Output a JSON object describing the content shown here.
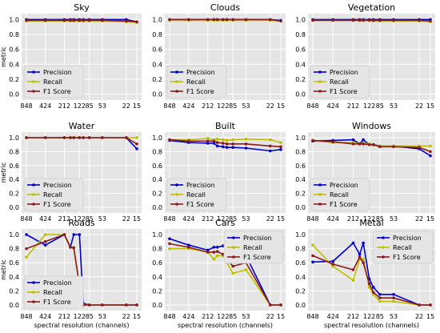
{
  "figure": {
    "common_x": {
      "tick_labels": [
        "848",
        "424",
        "212",
        "122",
        "85",
        "53",
        "22",
        "15"
      ],
      "label": "spectral resolution (channels)"
    },
    "common_y": {
      "tick_labels": [
        "0.0",
        "0.2",
        "0.4",
        "0.6",
        "0.8",
        "1.0"
      ],
      "label": "metric"
    },
    "legend": [
      "Precision",
      "Recall",
      "F1 Score"
    ],
    "colors": {
      "precision": "#0000cc",
      "recall": "#bfbf00",
      "f1": "#8b1a1a",
      "panel_bg": "#e5e5e5",
      "grid": "#ffffff"
    }
  },
  "chart_data": [
    {
      "type": "line",
      "title": "Sky",
      "ylabel": "metric",
      "xlabel": "",
      "x": [
        848,
        424,
        212,
        170,
        150,
        122,
        106,
        85,
        53,
        22,
        15
      ],
      "ylim": [
        -0.08,
        1.08
      ],
      "grid": true,
      "legend": "lower-left",
      "series": [
        {
          "name": "Precision",
          "values": [
            1.0,
            1.0,
            1.0,
            1.0,
            1.0,
            1.0,
            1.0,
            1.0,
            1.0,
            1.0,
            0.97
          ]
        },
        {
          "name": "Recall",
          "values": [
            0.98,
            0.98,
            0.98,
            0.98,
            0.98,
            0.98,
            0.98,
            0.98,
            0.98,
            0.97,
            0.96
          ]
        },
        {
          "name": "F1 Score",
          "values": [
            0.99,
            0.99,
            0.99,
            0.99,
            0.99,
            0.99,
            0.99,
            0.99,
            0.99,
            0.98,
            0.97
          ]
        }
      ]
    },
    {
      "type": "line",
      "title": "Clouds",
      "ylabel": "",
      "xlabel": "",
      "x": [
        848,
        424,
        212,
        170,
        150,
        122,
        106,
        85,
        53,
        22,
        15
      ],
      "ylim": [
        -0.08,
        1.08
      ],
      "grid": true,
      "legend": "lower-left",
      "series": [
        {
          "name": "Precision",
          "values": [
            1.0,
            1.0,
            1.0,
            1.0,
            1.0,
            1.0,
            1.0,
            1.0,
            1.0,
            1.0,
            0.99
          ]
        },
        {
          "name": "Recall",
          "values": [
            0.99,
            0.99,
            0.99,
            0.99,
            0.99,
            0.99,
            0.99,
            0.99,
            0.99,
            0.99,
            0.98
          ]
        },
        {
          "name": "F1 Score",
          "values": [
            1.0,
            1.0,
            1.0,
            1.0,
            1.0,
            1.0,
            1.0,
            1.0,
            1.0,
            1.0,
            0.98
          ]
        }
      ]
    },
    {
      "type": "line",
      "title": "Vegetation",
      "ylabel": "",
      "xlabel": "",
      "x": [
        848,
        424,
        212,
        170,
        150,
        122,
        106,
        85,
        53,
        22,
        15
      ],
      "ylim": [
        -0.08,
        1.08
      ],
      "grid": true,
      "legend": "lower-left",
      "series": [
        {
          "name": "Precision",
          "values": [
            1.0,
            1.0,
            1.0,
            1.0,
            1.0,
            1.0,
            1.0,
            1.0,
            1.0,
            1.0,
            1.0
          ]
        },
        {
          "name": "Recall",
          "values": [
            0.99,
            0.99,
            0.99,
            0.99,
            0.99,
            0.99,
            0.98,
            0.98,
            0.98,
            0.98,
            0.97
          ]
        },
        {
          "name": "F1 Score",
          "values": [
            0.99,
            0.99,
            0.99,
            0.99,
            0.99,
            0.99,
            0.99,
            0.99,
            0.99,
            0.99,
            0.98
          ]
        }
      ]
    },
    {
      "type": "line",
      "title": "Water",
      "ylabel": "metric",
      "xlabel": "",
      "x": [
        848,
        424,
        212,
        170,
        150,
        122,
        106,
        85,
        53,
        22,
        15
      ],
      "ylim": [
        -0.08,
        1.08
      ],
      "grid": true,
      "legend": "lower-left",
      "series": [
        {
          "name": "Precision",
          "values": [
            1.0,
            1.0,
            1.0,
            1.0,
            1.0,
            1.0,
            1.0,
            1.0,
            1.0,
            1.0,
            0.84
          ]
        },
        {
          "name": "Recall",
          "values": [
            1.0,
            1.0,
            1.0,
            1.0,
            1.0,
            1.0,
            1.0,
            1.0,
            1.0,
            1.0,
            1.0
          ]
        },
        {
          "name": "F1 Score",
          "values": [
            1.0,
            1.0,
            1.0,
            1.0,
            1.0,
            1.0,
            1.0,
            1.0,
            1.0,
            1.0,
            0.91
          ]
        }
      ]
    },
    {
      "type": "line",
      "title": "Built",
      "ylabel": "",
      "xlabel": "",
      "x": [
        848,
        424,
        212,
        170,
        150,
        122,
        106,
        85,
        53,
        22,
        15
      ],
      "ylim": [
        -0.08,
        1.08
      ],
      "grid": true,
      "legend": "lower-left",
      "series": [
        {
          "name": "Precision",
          "values": [
            0.96,
            0.93,
            0.92,
            0.92,
            0.88,
            0.87,
            0.86,
            0.86,
            0.85,
            0.81,
            0.83
          ]
        },
        {
          "name": "Recall",
          "values": [
            0.97,
            0.97,
            0.99,
            0.97,
            0.98,
            0.97,
            0.96,
            0.97,
            0.98,
            0.97,
            0.93
          ]
        },
        {
          "name": "F1 Score",
          "values": [
            0.97,
            0.95,
            0.95,
            0.95,
            0.93,
            0.92,
            0.91,
            0.91,
            0.91,
            0.88,
            0.87
          ]
        }
      ]
    },
    {
      "type": "line",
      "title": "Windows",
      "ylabel": "",
      "xlabel": "",
      "x": [
        848,
        424,
        212,
        170,
        150,
        122,
        106,
        85,
        53,
        22,
        15
      ],
      "ylim": [
        -0.08,
        1.08
      ],
      "grid": true,
      "legend": "lower-left",
      "series": [
        {
          "name": "Precision",
          "values": [
            0.95,
            0.96,
            0.97,
            0.91,
            0.97,
            0.9,
            0.9,
            0.88,
            0.88,
            0.84,
            0.74
          ]
        },
        {
          "name": "Recall",
          "values": [
            0.96,
            0.93,
            0.93,
            0.91,
            0.92,
            0.91,
            0.89,
            0.88,
            0.88,
            0.88,
            0.88
          ]
        },
        {
          "name": "F1 Score",
          "values": [
            0.96,
            0.94,
            0.91,
            0.91,
            0.91,
            0.9,
            0.9,
            0.87,
            0.87,
            0.86,
            0.8
          ]
        }
      ]
    },
    {
      "type": "line",
      "title": "Roads",
      "ylabel": "metric",
      "xlabel": "spectral resolution (channels)",
      "x": [
        848,
        424,
        212,
        170,
        150,
        122,
        106,
        85,
        53,
        22,
        15
      ],
      "ylim": [
        -0.08,
        1.08
      ],
      "grid": true,
      "legend": "lower-left",
      "series": [
        {
          "name": "Precision",
          "values": [
            1.0,
            0.85,
            1.0,
            0.82,
            1.0,
            1.0,
            0.02,
            0.0,
            0.0,
            0.0,
            0.0
          ]
        },
        {
          "name": "Recall",
          "values": [
            0.68,
            1.0,
            1.0,
            0.82,
            0.82,
            0.3,
            0.0,
            0.0,
            0.0,
            0.0,
            0.0
          ]
        },
        {
          "name": "F1 Score",
          "values": [
            0.8,
            0.9,
            1.0,
            0.82,
            0.81,
            0.28,
            0.0,
            0.0,
            0.0,
            0.0,
            0.0
          ]
        }
      ]
    },
    {
      "type": "line",
      "title": "Cars",
      "ylabel": "",
      "xlabel": "spectral resolution (channels)",
      "x": [
        848,
        424,
        212,
        170,
        150,
        122,
        106,
        85,
        53,
        22,
        15
      ],
      "ylim": [
        -0.08,
        1.08
      ],
      "grid": true,
      "legend": "upper-right",
      "series": [
        {
          "name": "Precision",
          "values": [
            0.94,
            0.85,
            0.78,
            0.82,
            0.82,
            0.84,
            0.77,
            0.68,
            0.7,
            0.0,
            0.0
          ]
        },
        {
          "name": "Recall",
          "values": [
            0.8,
            0.8,
            0.75,
            0.65,
            0.7,
            0.7,
            0.6,
            0.45,
            0.5,
            0.0,
            0.0
          ]
        },
        {
          "name": "F1 Score",
          "values": [
            0.87,
            0.82,
            0.75,
            0.75,
            0.76,
            0.72,
            0.65,
            0.55,
            0.6,
            0.0,
            0.0
          ]
        }
      ]
    },
    {
      "type": "line",
      "title": "Metal",
      "ylabel": "",
      "xlabel": "spectral resolution (channels)",
      "x": [
        848,
        424,
        212,
        170,
        150,
        122,
        106,
        85,
        53,
        22,
        15
      ],
      "ylim": [
        -0.08,
        1.08
      ],
      "grid": true,
      "legend": "upper-right",
      "series": [
        {
          "name": "Precision",
          "values": [
            0.61,
            0.62,
            0.88,
            0.72,
            0.88,
            0.37,
            0.25,
            0.15,
            0.15,
            0.0,
            0.0
          ]
        },
        {
          "name": "Recall",
          "values": [
            0.85,
            0.55,
            0.35,
            0.65,
            0.65,
            0.25,
            0.15,
            0.05,
            0.05,
            0.0,
            0.0
          ]
        },
        {
          "name": "F1 Score",
          "values": [
            0.7,
            0.58,
            0.5,
            0.68,
            0.6,
            0.3,
            0.18,
            0.1,
            0.1,
            0.0,
            0.0
          ]
        }
      ]
    }
  ]
}
